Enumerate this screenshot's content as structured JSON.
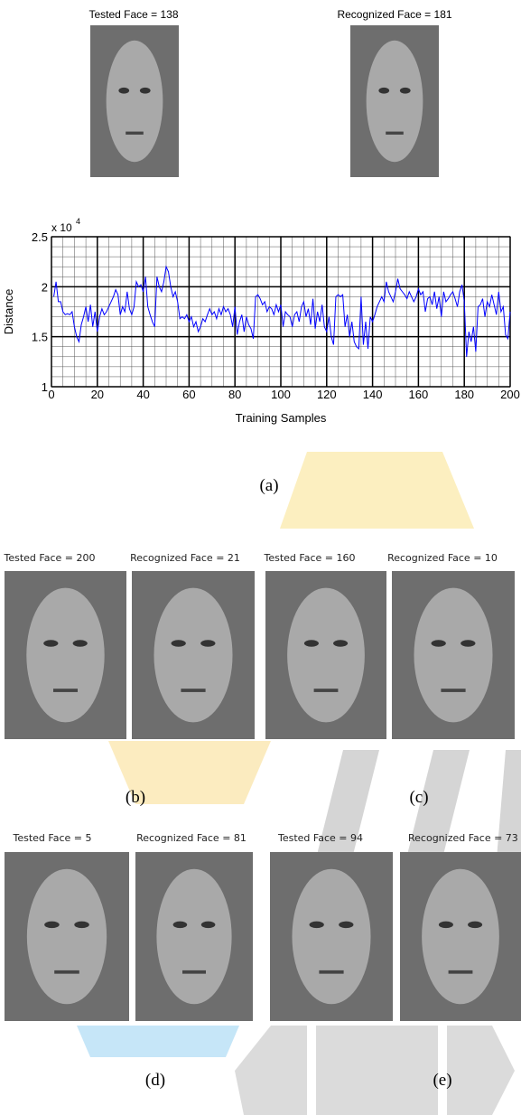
{
  "figure": {
    "panel_a": {
      "tested_caption": "Tested Face = 138",
      "recognized_caption": "Recognized Face = 181",
      "label": "(a)"
    },
    "panel_b": {
      "tested_caption": "Tested Face = 200",
      "recognized_caption": "Recognized Face = 21",
      "label": "(b)"
    },
    "panel_c": {
      "tested_caption": "Tested Face = 160",
      "recognized_caption": "Recognized Face = 10",
      "label": "(c)"
    },
    "panel_d": {
      "tested_caption": "Tested Face = 5",
      "recognized_caption": "Recognized Face = 81",
      "label": "(d)"
    },
    "panel_e": {
      "tested_caption": "Tested Face = 94",
      "recognized_caption": "Recognized Face = 73",
      "label": "(e)"
    }
  },
  "chart_data": {
    "type": "line",
    "x_label": "Training Samples",
    "y_label": "Distance",
    "y_scale": "x 10",
    "y_scale_exponent": 4,
    "color": "#0000ff",
    "xlim": [
      0,
      200
    ],
    "ylim": [
      1,
      2.5
    ],
    "xticks": [
      0,
      20,
      40,
      60,
      80,
      100,
      120,
      140,
      160,
      180,
      200
    ],
    "yticks": [
      1,
      1.5,
      2,
      2.5
    ],
    "grid": true,
    "minor_divisions": {
      "x": 4,
      "y": 5
    },
    "x": [
      1,
      2,
      3,
      4,
      5,
      6,
      7,
      8,
      9,
      10,
      11,
      12,
      13,
      14,
      15,
      16,
      17,
      18,
      19,
      20,
      21,
      22,
      23,
      24,
      25,
      26,
      27,
      28,
      29,
      30,
      31,
      32,
      33,
      34,
      35,
      36,
      37,
      38,
      39,
      40,
      41,
      42,
      43,
      44,
      45,
      46,
      47,
      48,
      49,
      50,
      51,
      52,
      53,
      54,
      55,
      56,
      57,
      58,
      59,
      60,
      61,
      62,
      63,
      64,
      65,
      66,
      67,
      68,
      69,
      70,
      71,
      72,
      73,
      74,
      75,
      76,
      77,
      78,
      79,
      80,
      81,
      82,
      83,
      84,
      85,
      86,
      87,
      88,
      89,
      90,
      91,
      92,
      93,
      94,
      95,
      96,
      97,
      98,
      99,
      100,
      101,
      102,
      103,
      104,
      105,
      106,
      107,
      108,
      109,
      110,
      111,
      112,
      113,
      114,
      115,
      116,
      117,
      118,
      119,
      120,
      121,
      122,
      123,
      124,
      125,
      126,
      127,
      128,
      129,
      130,
      131,
      132,
      133,
      134,
      135,
      136,
      137,
      138,
      139,
      140,
      141,
      142,
      143,
      144,
      145,
      146,
      147,
      148,
      149,
      150,
      151,
      152,
      153,
      154,
      155,
      156,
      157,
      158,
      159,
      160,
      161,
      162,
      163,
      164,
      165,
      166,
      167,
      168,
      169,
      170,
      171,
      172,
      173,
      174,
      175,
      176,
      177,
      178,
      179,
      180,
      181,
      182,
      183,
      184,
      185,
      186,
      187,
      188,
      189,
      190,
      191,
      192,
      193,
      194,
      195,
      196,
      197,
      198,
      199,
      200
    ],
    "values": [
      1.9,
      2.05,
      1.85,
      1.85,
      1.75,
      1.72,
      1.73,
      1.72,
      1.75,
      1.6,
      1.5,
      1.45,
      1.62,
      1.7,
      1.8,
      1.65,
      1.82,
      1.6,
      1.75,
      1.55,
      1.7,
      1.78,
      1.72,
      1.75,
      1.8,
      1.85,
      1.9,
      1.97,
      1.92,
      1.72,
      1.8,
      1.75,
      1.95,
      1.78,
      1.72,
      1.8,
      2.05,
      2.0,
      2.02,
      1.95,
      2.1,
      1.8,
      1.72,
      1.65,
      1.6,
      2.1,
      2.0,
      1.95,
      2.05,
      2.2,
      2.15,
      2.0,
      1.9,
      1.95,
      1.85,
      1.68,
      1.7,
      1.68,
      1.72,
      1.65,
      1.7,
      1.6,
      1.65,
      1.55,
      1.6,
      1.68,
      1.65,
      1.72,
      1.78,
      1.72,
      1.75,
      1.68,
      1.78,
      1.72,
      1.8,
      1.75,
      1.78,
      1.72,
      1.6,
      1.8,
      1.52,
      1.65,
      1.72,
      1.55,
      1.7,
      1.62,
      1.58,
      1.48,
      1.9,
      1.92,
      1.88,
      1.82,
      1.85,
      1.75,
      1.8,
      1.78,
      1.72,
      1.82,
      1.75,
      1.82,
      1.6,
      1.75,
      1.72,
      1.7,
      1.6,
      1.72,
      1.75,
      1.65,
      1.8,
      1.85,
      1.7,
      1.78,
      1.62,
      1.88,
      1.58,
      1.75,
      1.65,
      1.82,
      1.6,
      1.55,
      1.7,
      1.5,
      1.42,
      1.9,
      1.92,
      1.9,
      1.92,
      1.6,
      1.72,
      1.5,
      1.65,
      1.45,
      1.4,
      1.38,
      1.9,
      1.42,
      1.65,
      1.38,
      1.7,
      1.65,
      1.72,
      1.8,
      1.85,
      1.9,
      1.85,
      2.05,
      1.95,
      1.9,
      1.85,
      1.95,
      2.08,
      1.98,
      1.95,
      1.92,
      1.88,
      1.95,
      1.9,
      1.85,
      1.9,
      1.98,
      1.92,
      1.95,
      1.75,
      1.88,
      1.9,
      1.82,
      1.95,
      1.78,
      1.9,
      1.7,
      1.95,
      1.85,
      1.88,
      1.92,
      1.95,
      1.88,
      1.8,
      1.95,
      2.02,
      1.85,
      1.3,
      1.55,
      1.45,
      1.6,
      1.35,
      1.8,
      1.82,
      1.88,
      1.7,
      1.85,
      1.8,
      1.92,
      1.82,
      1.72,
      1.95,
      1.75,
      1.8,
      1.52,
      1.48,
      1.75
    ]
  }
}
